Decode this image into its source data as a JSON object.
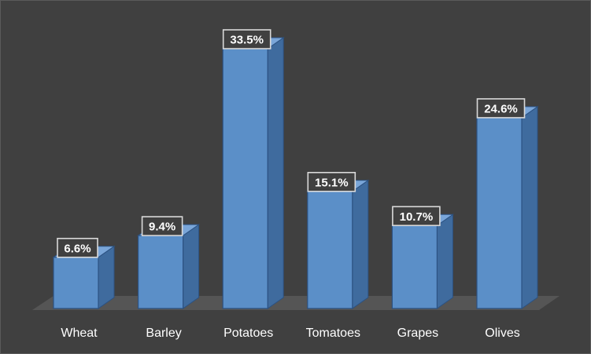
{
  "chart_data": {
    "type": "bar",
    "categories": [
      "Wheat",
      "Barley",
      "Potatoes",
      "Tomatoes",
      "Grapes",
      "Olives"
    ],
    "values": [
      6.6,
      9.4,
      33.5,
      15.1,
      10.7,
      24.6
    ],
    "data_labels": [
      "6.6%",
      "9.4%",
      "33.5%",
      "15.1%",
      "10.7%",
      "24.6%"
    ],
    "title": "",
    "xlabel": "",
    "ylabel": "",
    "ylim": [
      0,
      33.5
    ],
    "grid": false,
    "legend": "none",
    "three_d": true,
    "colors": {
      "background": "#404040",
      "bar_front": "#5b8fc8",
      "bar_side": "#3f6b9e",
      "bar_top": "#7aa6d9",
      "bar_outline": "#2c5282",
      "floor": "#555555",
      "label_box": "#404040",
      "label_border": "#d9d9d9",
      "text": "#ffffff"
    }
  }
}
